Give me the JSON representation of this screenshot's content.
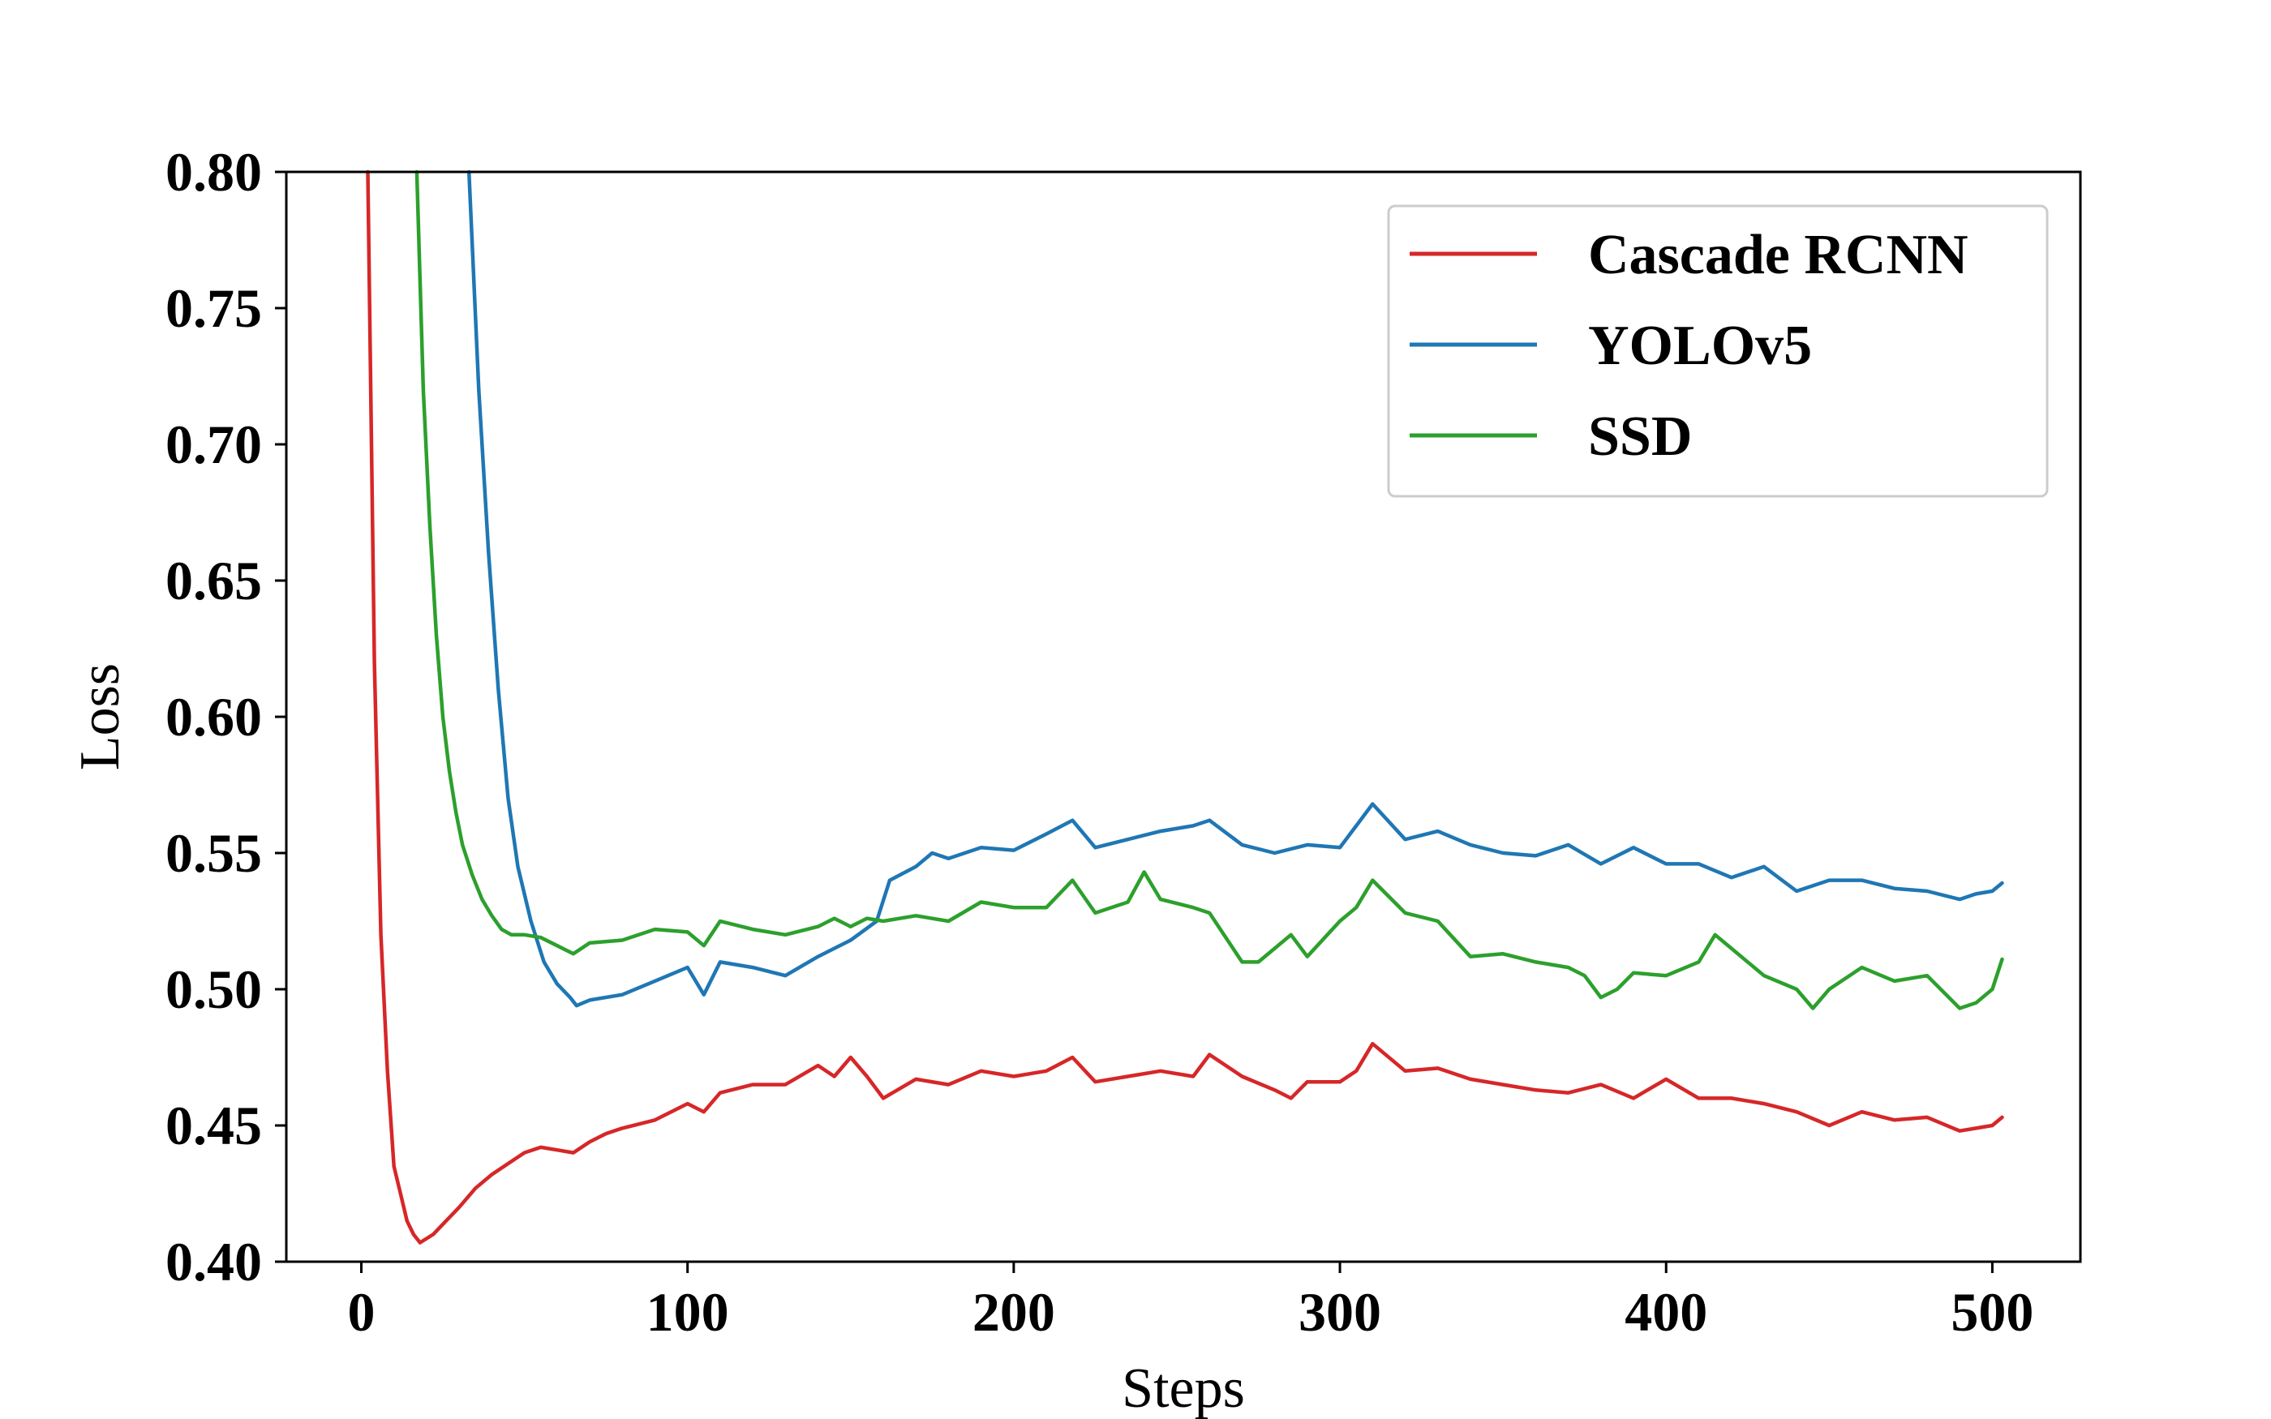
{
  "chart_data": {
    "type": "line",
    "title": "",
    "xlabel": "Steps",
    "ylabel": "Loss",
    "xlim": [
      -23,
      527
    ],
    "ylim": [
      0.4,
      0.8
    ],
    "xticks": [
      0,
      100,
      200,
      300,
      400,
      500
    ],
    "xtick_labels": [
      "0",
      "100",
      "200",
      "300",
      "400",
      "500"
    ],
    "yticks": [
      0.4,
      0.45,
      0.5,
      0.55,
      0.6,
      0.65,
      0.7,
      0.75,
      0.8
    ],
    "ytick_labels": [
      "0.40",
      "0.45",
      "0.50",
      "0.55",
      "0.60",
      "0.65",
      "0.70",
      "0.75",
      "0.80"
    ],
    "grid": false,
    "legend_position": "top-right",
    "series": [
      {
        "name": "Cascade RCNN",
        "color": "#d62728",
        "x": [
          2,
          4,
          6,
          8,
          10,
          12,
          14,
          16,
          18,
          22,
          26,
          30,
          35,
          40,
          45,
          50,
          55,
          60,
          65,
          70,
          75,
          80,
          90,
          100,
          105,
          110,
          120,
          130,
          140,
          145,
          150,
          155,
          160,
          170,
          180,
          190,
          200,
          210,
          218,
          225,
          235,
          245,
          255,
          260,
          270,
          280,
          285,
          290,
          300,
          305,
          310,
          320,
          330,
          340,
          350,
          360,
          370,
          380,
          390,
          400,
          410,
          420,
          430,
          440,
          450,
          460,
          470,
          480,
          490,
          495,
          500,
          503
        ],
        "y": [
          0.8,
          0.62,
          0.52,
          0.47,
          0.435,
          0.425,
          0.415,
          0.41,
          0.407,
          0.41,
          0.415,
          0.42,
          0.427,
          0.432,
          0.436,
          0.44,
          0.442,
          0.441,
          0.44,
          0.444,
          0.447,
          0.449,
          0.452,
          0.458,
          0.455,
          0.462,
          0.465,
          0.465,
          0.472,
          0.468,
          0.475,
          0.468,
          0.46,
          0.467,
          0.465,
          0.47,
          0.468,
          0.47,
          0.475,
          0.466,
          0.468,
          0.47,
          0.468,
          0.476,
          0.468,
          0.463,
          0.46,
          0.466,
          0.466,
          0.47,
          0.48,
          0.47,
          0.471,
          0.467,
          0.465,
          0.463,
          0.462,
          0.465,
          0.46,
          0.467,
          0.46,
          0.46,
          0.458,
          0.455,
          0.45,
          0.455,
          0.452,
          0.453,
          0.448,
          0.449,
          0.45,
          0.453
        ]
      },
      {
        "name": "YOLOv5",
        "color": "#1f77b4",
        "x": [
          33,
          36,
          39,
          42,
          45,
          48,
          52,
          56,
          60,
          64,
          66,
          70,
          80,
          90,
          100,
          105,
          110,
          120,
          130,
          140,
          150,
          158,
          162,
          170,
          175,
          180,
          190,
          200,
          210,
          218,
          225,
          235,
          245,
          255,
          260,
          270,
          280,
          290,
          300,
          305,
          310,
          320,
          330,
          340,
          350,
          360,
          370,
          380,
          390,
          400,
          410,
          420,
          430,
          440,
          450,
          460,
          470,
          480,
          490,
          495,
          500,
          503
        ],
        "y": [
          0.8,
          0.72,
          0.66,
          0.61,
          0.57,
          0.545,
          0.525,
          0.51,
          0.502,
          0.497,
          0.494,
          0.496,
          0.498,
          0.503,
          0.508,
          0.498,
          0.51,
          0.508,
          0.505,
          0.512,
          0.518,
          0.525,
          0.54,
          0.545,
          0.55,
          0.548,
          0.552,
          0.551,
          0.557,
          0.562,
          0.552,
          0.555,
          0.558,
          0.56,
          0.562,
          0.553,
          0.55,
          0.553,
          0.552,
          0.56,
          0.568,
          0.555,
          0.558,
          0.553,
          0.55,
          0.549,
          0.553,
          0.546,
          0.552,
          0.546,
          0.546,
          0.541,
          0.545,
          0.536,
          0.54,
          0.54,
          0.537,
          0.536,
          0.533,
          0.535,
          0.536,
          0.539
        ]
      },
      {
        "name": "SSD",
        "color": "#2ca02c",
        "x": [
          17,
          19,
          21,
          23,
          25,
          27,
          29,
          31,
          34,
          37,
          40,
          43,
          46,
          50,
          55,
          60,
          65,
          70,
          80,
          90,
          100,
          105,
          110,
          120,
          130,
          140,
          145,
          150,
          155,
          160,
          170,
          180,
          190,
          200,
          210,
          218,
          225,
          235,
          240,
          245,
          255,
          260,
          270,
          275,
          280,
          285,
          290,
          300,
          305,
          310,
          320,
          330,
          340,
          350,
          360,
          370,
          375,
          380,
          385,
          390,
          400,
          410,
          415,
          420,
          430,
          440,
          445,
          450,
          460,
          470,
          480,
          490,
          495,
          500,
          503
        ],
        "y": [
          0.8,
          0.72,
          0.67,
          0.63,
          0.6,
          0.58,
          0.565,
          0.553,
          0.542,
          0.533,
          0.527,
          0.522,
          0.52,
          0.52,
          0.519,
          0.516,
          0.513,
          0.517,
          0.518,
          0.522,
          0.521,
          0.516,
          0.525,
          0.522,
          0.52,
          0.523,
          0.526,
          0.523,
          0.526,
          0.525,
          0.527,
          0.525,
          0.532,
          0.53,
          0.53,
          0.54,
          0.528,
          0.532,
          0.543,
          0.533,
          0.53,
          0.528,
          0.51,
          0.51,
          0.515,
          0.52,
          0.512,
          0.525,
          0.53,
          0.54,
          0.528,
          0.525,
          0.512,
          0.513,
          0.51,
          0.508,
          0.505,
          0.497,
          0.5,
          0.506,
          0.505,
          0.51,
          0.52,
          0.515,
          0.505,
          0.5,
          0.493,
          0.5,
          0.508,
          0.503,
          0.505,
          0.493,
          0.495,
          0.5,
          0.511
        ]
      }
    ]
  }
}
